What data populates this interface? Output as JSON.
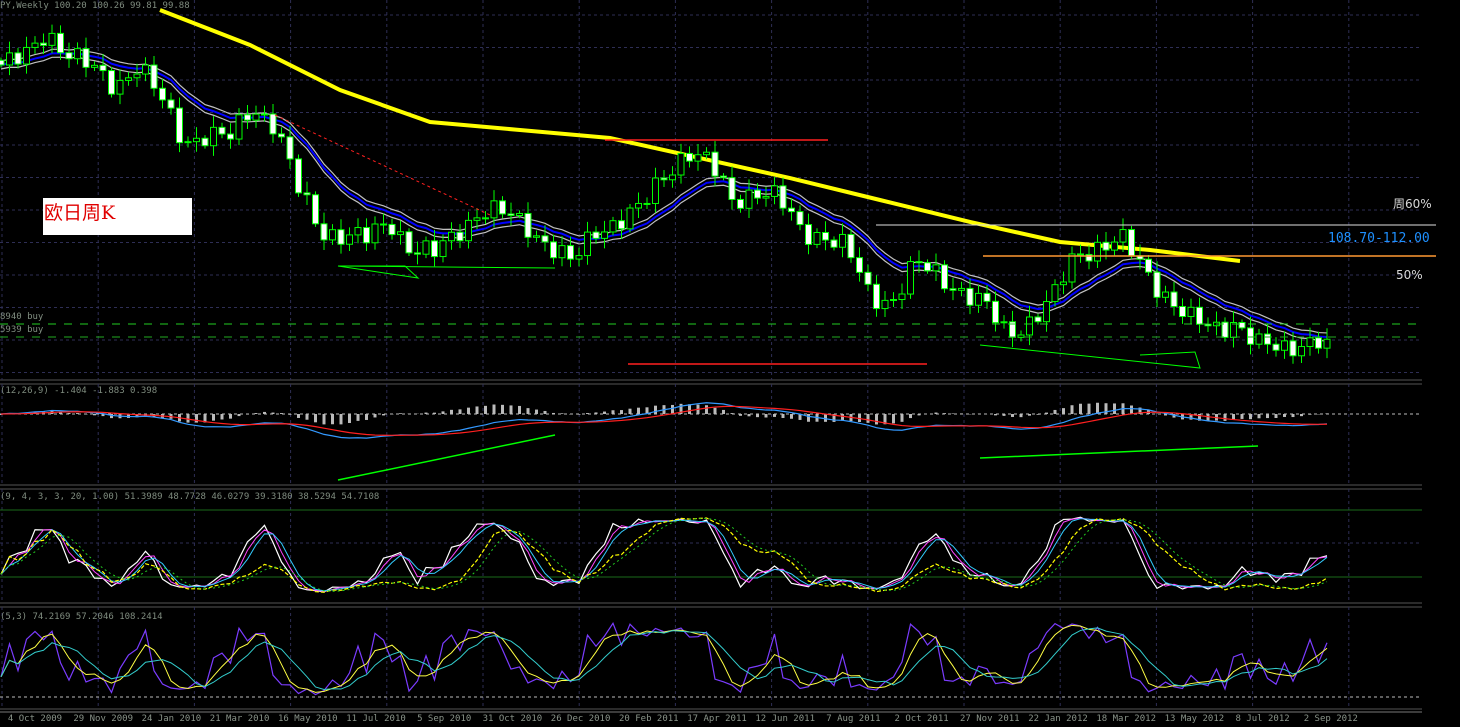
{
  "header": {
    "main": "PY,Weekly  100.20 100.26 99.81 99.88",
    "buy1": "8940 buy",
    "buy2": "5939 buy",
    "macd": "(12,26,9) -1.404 -1.883 0.398",
    "stoch": "(9, 4, 3, 3, 20, 1.00) 51.3989 48.7728 46.0279 39.3180 38.5294 54.7108",
    "osc3": "(5,3) 74.2169 57.2046 108.2414"
  },
  "annotations": {
    "title": "欧日周K",
    "week60": "周60%",
    "range": "108.70-112.00",
    "pct50": "50%"
  },
  "colors": {
    "background": "#000000",
    "candle": "#00ff00",
    "ma_long": "#ffff00",
    "ma_band_inner": "#0000ff",
    "ma_band_outer": "#c0c0c0",
    "grid": "#2e2e55",
    "range_text": "#1e90ff",
    "range_lines": "#ff9933",
    "title_text": "#e00000"
  },
  "chart_data": {
    "type": "candlestick",
    "symbol_timeframe": "Weekly",
    "x_tick_labels": [
      "4 Oct 2009",
      "29 Nov 2009",
      "24 Jan 2010",
      "21 Mar 2010",
      "16 May 2010",
      "11 Jul 2010",
      "5 Sep 2010",
      "31 Oct 2010",
      "26 Dec 2010",
      "20 Feb 2011",
      "17 Apr 2011",
      "12 Jun 2011",
      "7 Aug 2011",
      "2 Oct 2011",
      "27 Nov 2011",
      "22 Jan 2012",
      "18 Mar 2012",
      "13 May 2012",
      "8 Jul 2012",
      "2 Sep 2012"
    ],
    "date_range": [
      "Sep 2009",
      "Sep 2012"
    ],
    "closes_sampled": [
      128.95,
      129.48,
      132.66,
      130.01,
      128.42,
      126.83,
      128.95,
      125.24,
      121.0,
      121.53,
      121.0,
      124.71,
      122.59,
      115.7,
      111.46,
      110.93,
      110.4,
      112.52,
      109.34,
      108.81,
      111.46,
      113.58,
      113.05,
      111.99,
      109.87,
      107.75,
      111.46,
      112.52,
      113.58,
      117.29,
      119.94,
      118.35,
      114.64,
      115.7,
      114.64,
      111.46,
      110.93,
      109.34,
      104.57,
      104.04,
      107.75,
      106.69,
      105.1,
      103.51,
      100.33,
      101.92,
      104.04,
      108.81,
      109.87,
      110.4,
      107.22,
      104.57,
      101.92,
      100.86,
      101.92,
      99.19,
      98.68,
      99.8,
      99.88
    ],
    "ma_long_sampled": [
      134.78,
      131.07,
      126.3,
      122.91,
      122.06,
      121.21,
      119.09,
      116.97,
      114.64,
      112.31,
      110.19,
      109.34,
      108.17
    ],
    "levels": {
      "range_high": 112.0,
      "range_low": 108.7
    },
    "panels": [
      "price",
      "MACD (12,26,9)",
      "Stochastic (9,4,3,3,20,1.00)",
      "Oscillator (5,3)"
    ]
  }
}
